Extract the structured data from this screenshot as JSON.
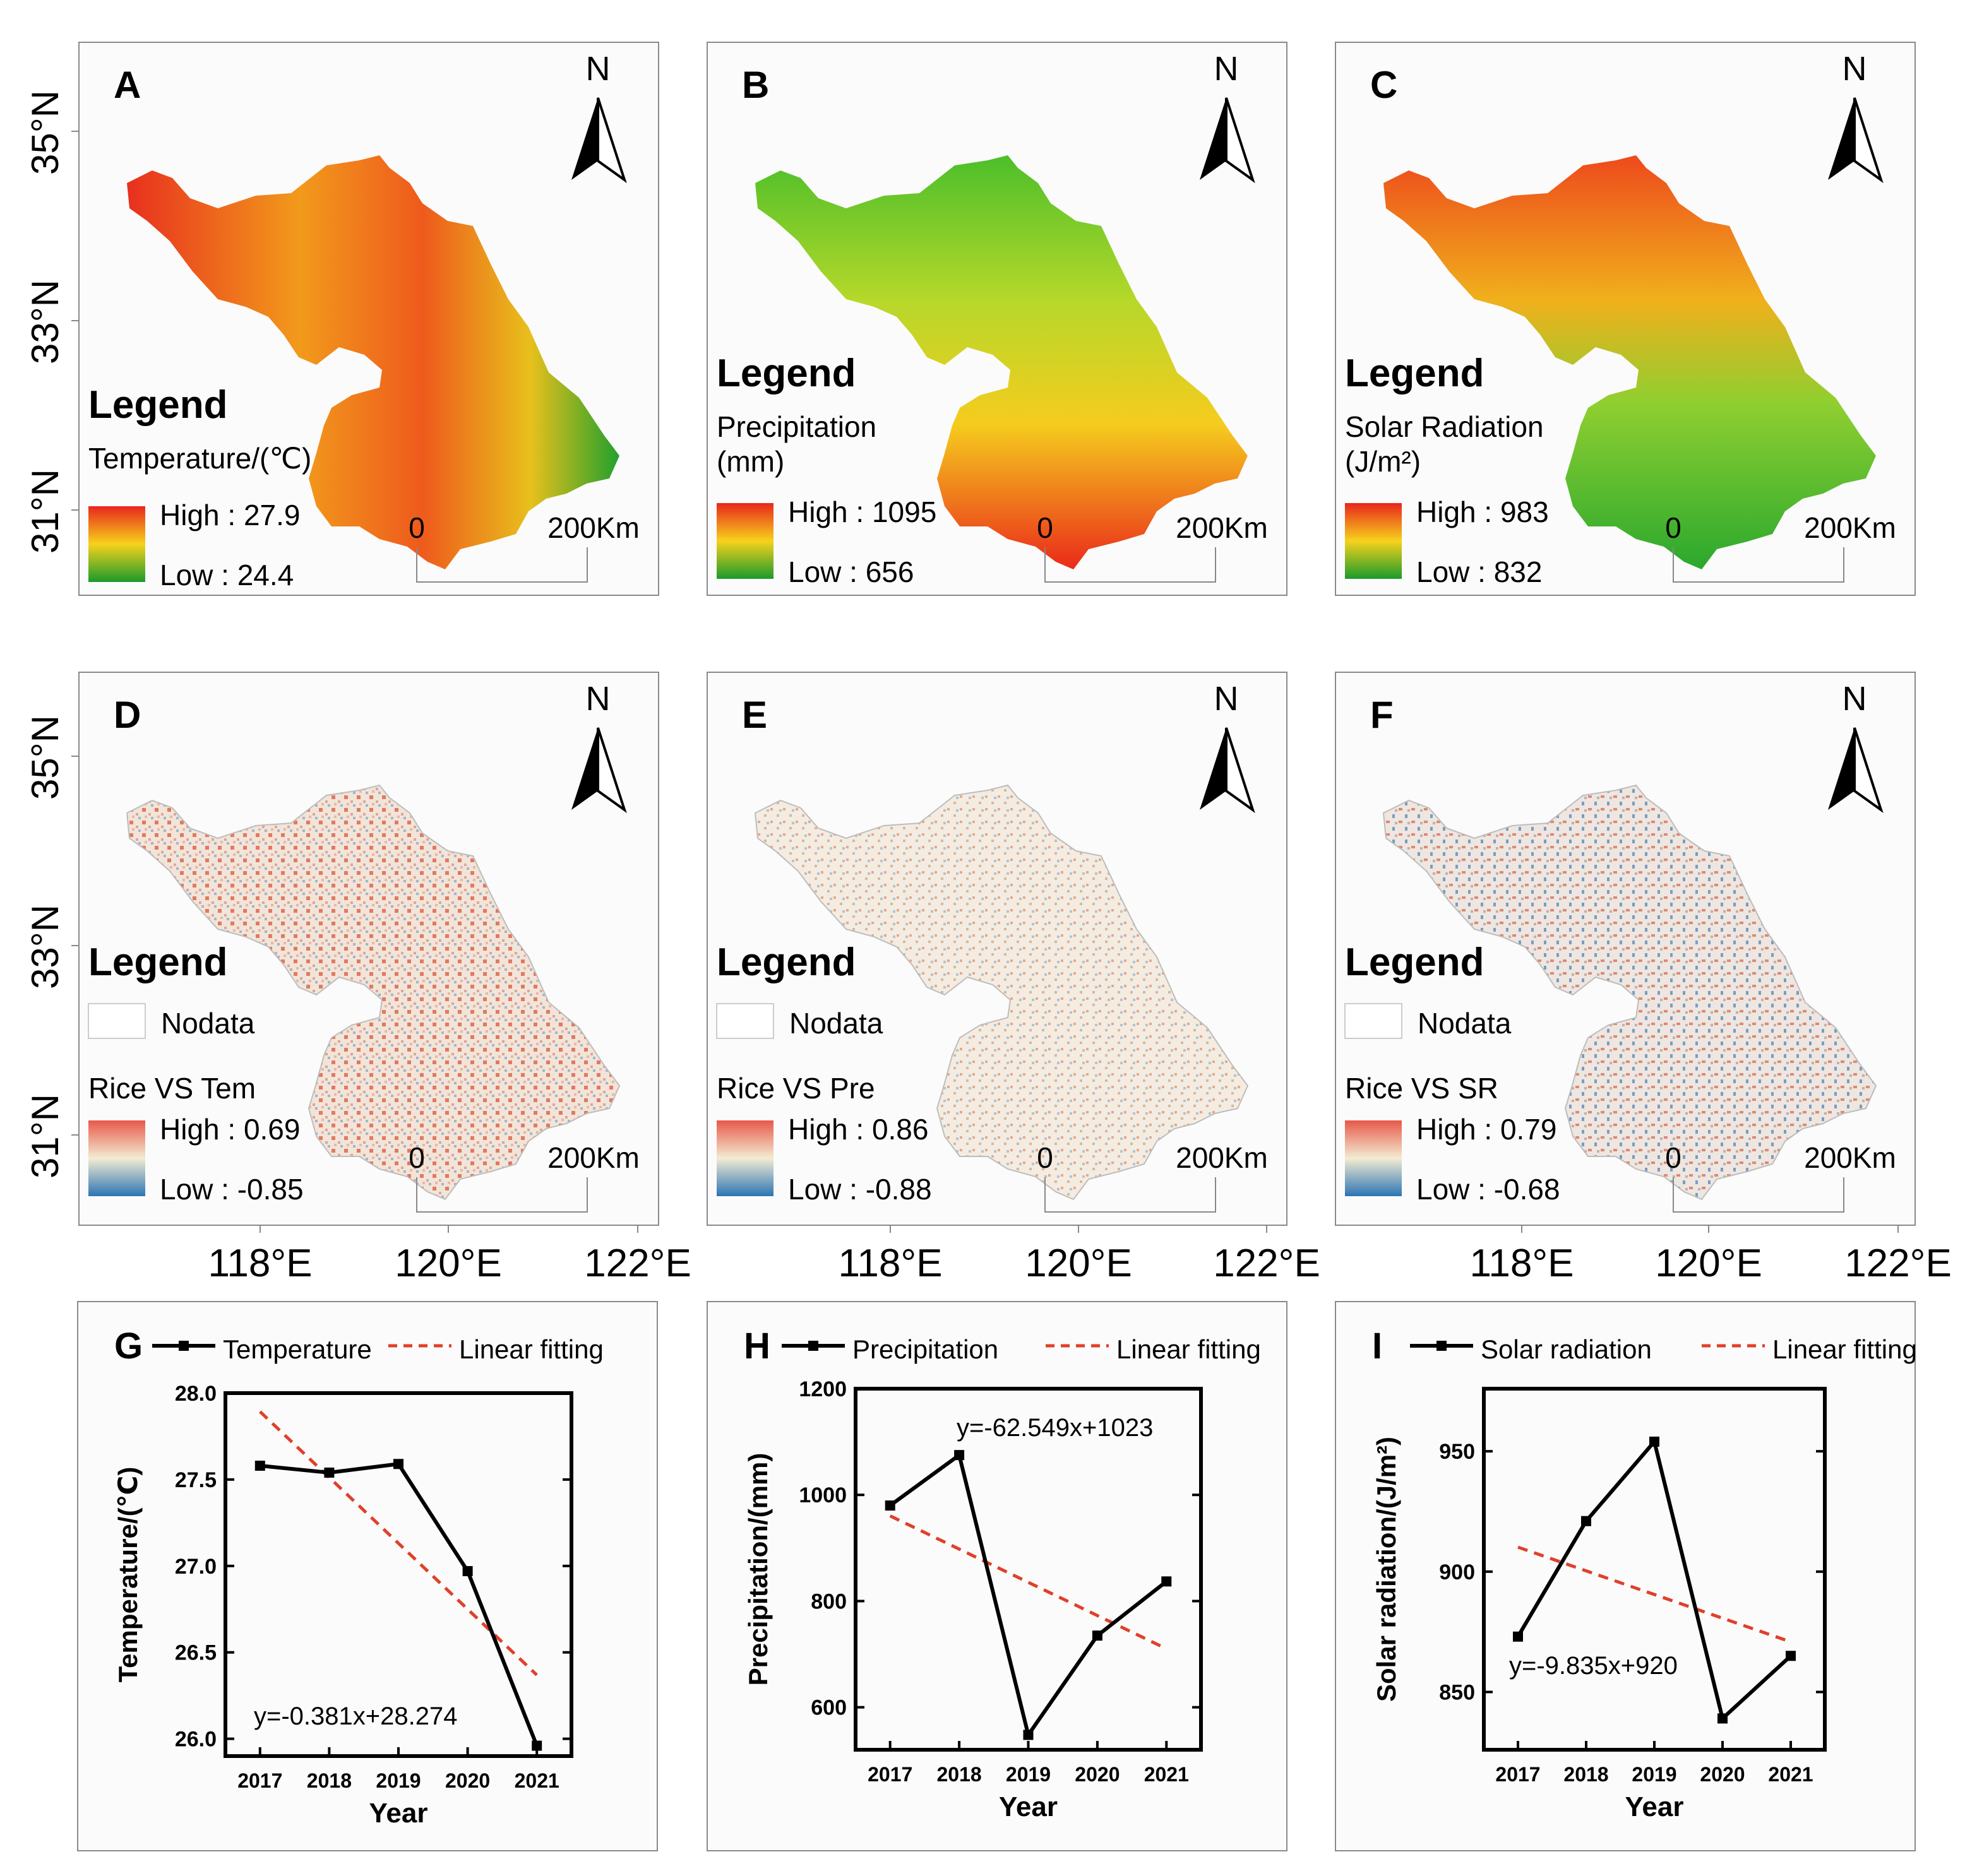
{
  "colors": {
    "temp_high": "#e8261c",
    "temp_mid": "#f7d21c",
    "temp_low": "#1a9a2a",
    "corr_high": "#e8584a",
    "corr_mid": "#f3ecd2",
    "corr_low": "#2c74b4",
    "fit_line": "#e0402a",
    "data_line": "#000000"
  },
  "axes": {
    "lat_labels": [
      "35°N",
      "33°N",
      "31°N"
    ],
    "lon_labels": [
      "118°E",
      "120°E",
      "122°E"
    ]
  },
  "maps": [
    {
      "letter": "A",
      "north": "N",
      "legend_title": "Legend",
      "var_name_1": "Temperature/(℃)",
      "var_name_2": "",
      "high": "High : 27.9",
      "low": "Low : 24.4",
      "nodata": "",
      "scale_0": "0",
      "scale_1": "200Km",
      "ramp": "temp"
    },
    {
      "letter": "B",
      "north": "N",
      "legend_title": "Legend",
      "var_name_1": "Precipitation",
      "var_name_2": "(mm)",
      "high": "High : 1095",
      "low": "Low : 656",
      "nodata": "",
      "scale_0": "0",
      "scale_1": "200Km",
      "ramp": "temp"
    },
    {
      "letter": "C",
      "north": "N",
      "legend_title": "Legend",
      "var_name_1": "Solar Radiation",
      "var_name_2": "(J/m²)",
      "high": "High : 983",
      "low": "Low : 832",
      "nodata": "",
      "scale_0": "0",
      "scale_1": "200Km",
      "ramp": "temp"
    },
    {
      "letter": "D",
      "north": "N",
      "legend_title": "Legend",
      "var_name_1": "Rice VS Tem",
      "var_name_2": "",
      "high": "High : 0.69",
      "low": "Low : -0.85",
      "nodata": "Nodata",
      "scale_0": "0",
      "scale_1": "200Km",
      "ramp": "corr"
    },
    {
      "letter": "E",
      "north": "N",
      "legend_title": "Legend",
      "var_name_1": "Rice VS Pre",
      "var_name_2": "",
      "high": "High : 0.86",
      "low": "Low : -0.88",
      "nodata": "Nodata",
      "scale_0": "0",
      "scale_1": "200Km",
      "ramp": "corr"
    },
    {
      "letter": "F",
      "north": "N",
      "legend_title": "Legend",
      "var_name_1": "Rice VS SR",
      "var_name_2": "",
      "high": "High : 0.79",
      "low": "Low : -0.68",
      "nodata": "Nodata",
      "scale_0": "0",
      "scale_1": "200Km",
      "ramp": "corr"
    }
  ],
  "chart_data": [
    {
      "letter": "G",
      "type": "line",
      "title": "",
      "xlabel": "Year",
      "ylabel": "Temperature/(℃)",
      "categories": [
        "2017",
        "2018",
        "2019",
        "2020",
        "2021"
      ],
      "yticks": [
        "26.0",
        "26.5",
        "27.0",
        "27.5",
        "28.0"
      ],
      "ylim": [
        25.9,
        28.0
      ],
      "series": [
        {
          "name": "Temperature",
          "values": [
            27.58,
            27.54,
            27.59,
            26.97,
            25.96
          ]
        }
      ],
      "fit": {
        "name": "Linear fitting",
        "slope": -0.381,
        "intercept": 28.274,
        "equation": "y=-0.381x+28.274"
      },
      "legend": "top"
    },
    {
      "letter": "H",
      "type": "line",
      "title": "",
      "xlabel": "Year",
      "ylabel": "Precipitation/(mm)",
      "categories": [
        "2017",
        "2018",
        "2019",
        "2020",
        "2021"
      ],
      "yticks": [
        "600",
        "800",
        "1000",
        "1200"
      ],
      "ylim": [
        520,
        1200
      ],
      "series": [
        {
          "name": "Precipitation",
          "values": [
            980,
            1075,
            548,
            735,
            837
          ]
        }
      ],
      "fit": {
        "name": "Linear fitting",
        "slope": -62.549,
        "intercept": 1023,
        "equation": "y=-62.549x+1023"
      },
      "legend": "top"
    },
    {
      "letter": "I",
      "type": "line",
      "title": "",
      "xlabel": "Year",
      "ylabel": "Solar radiation/(J/m²)",
      "categories": [
        "2017",
        "2018",
        "2019",
        "2020",
        "2021"
      ],
      "yticks": [
        "850",
        "900",
        "950"
      ],
      "ylim": [
        826,
        976
      ],
      "series": [
        {
          "name": "Solar radiation",
          "values": [
            873,
            921,
            954,
            839,
            865
          ]
        }
      ],
      "fit": {
        "name": "Linear fitting",
        "slope": -9.835,
        "intercept": 920,
        "equation": "y=-9.835x+920"
      },
      "legend": "top"
    }
  ]
}
